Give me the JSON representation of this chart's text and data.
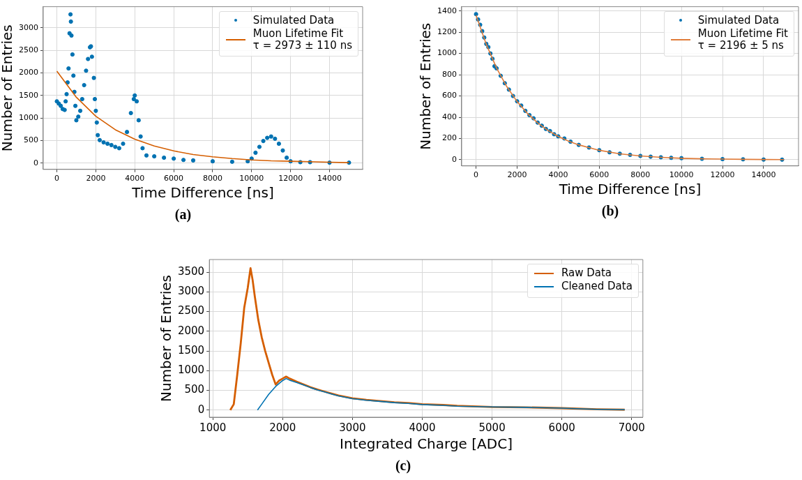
{
  "chart_data": [
    {
      "type": "scatter",
      "xlabel": "Time Difference [ns]",
      "ylabel": "Number of Entries",
      "xlim": [
        -700,
        15700
      ],
      "ylim": [
        -140,
        3470
      ],
      "xticks": [
        0,
        2000,
        4000,
        6000,
        8000,
        10000,
        12000,
        14000
      ],
      "yticks": [
        0,
        500,
        1000,
        1500,
        2000,
        2500,
        3000
      ],
      "grid": true,
      "legend": "top right",
      "annotations": [
        "(a)"
      ],
      "series": [
        {
          "name": "Simulated Data",
          "color": "#0072b2",
          "marker": "circle",
          "x": [
            0,
            100,
            200,
            300,
            400,
            450,
            500,
            550,
            600,
            650,
            700,
            720,
            750,
            800,
            850,
            900,
            950,
            1000,
            1100,
            1200,
            1300,
            1400,
            1500,
            1600,
            1700,
            1750,
            1800,
            1900,
            1950,
            2000,
            2050,
            2100,
            2200,
            2400,
            2600,
            2800,
            3000,
            3200,
            3400,
            3600,
            3800,
            3950,
            4000,
            4100,
            4200,
            4300,
            4400,
            4600,
            5000,
            5500,
            6000,
            6500,
            7000,
            8000,
            9000,
            9800,
            10000,
            10200,
            10400,
            10600,
            10800,
            11000,
            11200,
            11400,
            11600,
            11800,
            12000,
            12500,
            13000,
            14000,
            15000
          ],
          "values": [
            1370,
            1320,
            1270,
            1200,
            1180,
            1370,
            1530,
            1790,
            2100,
            2880,
            3300,
            3140,
            2830,
            2410,
            1940,
            1580,
            1270,
            950,
            1030,
            1160,
            1420,
            1730,
            2050,
            2310,
            2570,
            2590,
            2360,
            1890,
            1420,
            1160,
            900,
            620,
            510,
            460,
            430,
            400,
            360,
            330,
            430,
            690,
            1110,
            1420,
            1500,
            1370,
            950,
            590,
            330,
            170,
            150,
            120,
            100,
            70,
            60,
            40,
            30,
            40,
            100,
            230,
            360,
            490,
            560,
            590,
            540,
            430,
            280,
            120,
            40,
            20,
            20,
            10,
            10
          ]
        },
        {
          "name": "Muon Lifetime Fit\nτ = 2973 ± 110 ns",
          "type": "line",
          "marker": "none",
          "color": "#d55e00",
          "x": [
            0,
            1000,
            2000,
            3000,
            4000,
            5000,
            6000,
            7000,
            8000,
            9000,
            10000,
            11000,
            12000,
            13000,
            14000,
            15000
          ],
          "values": [
            2040,
            1460,
            1040,
            740,
            530,
            380,
            270,
            190,
            140,
            100,
            70,
            50,
            40,
            30,
            20,
            10
          ]
        }
      ]
    },
    {
      "type": "scatter",
      "xlabel": "Time Difference [ns]",
      "ylabel": "Number of Entries",
      "xlim": [
        -700,
        15700
      ],
      "ylim": [
        -58,
        1440
      ],
      "xticks": [
        0,
        2000,
        4000,
        6000,
        8000,
        10000,
        12000,
        14000
      ],
      "yticks": [
        0,
        200,
        400,
        600,
        800,
        1000,
        1200,
        1400
      ],
      "grid": true,
      "legend": "top right",
      "annotations": [
        "(b)"
      ],
      "series": [
        {
          "name": "Simulated Data",
          "color": "#0072b2",
          "marker": "circle",
          "x": [
            0,
            100,
            200,
            300,
            400,
            500,
            600,
            700,
            800,
            900,
            1000,
            1200,
            1400,
            1600,
            1800,
            2000,
            2200,
            2400,
            2600,
            2800,
            3000,
            3200,
            3400,
            3600,
            3800,
            4000,
            4300,
            4600,
            5000,
            5500,
            6000,
            6500,
            7000,
            7500,
            8000,
            8500,
            9000,
            9500,
            10000,
            11000,
            12000,
            13000,
            14000,
            14900
          ],
          "values": [
            1370,
            1320,
            1270,
            1210,
            1150,
            1090,
            1060,
            1000,
            950,
            880,
            860,
            790,
            720,
            660,
            600,
            550,
            510,
            460,
            420,
            390,
            350,
            320,
            290,
            270,
            240,
            220,
            200,
            170,
            140,
            115,
            90,
            70,
            57,
            46,
            36,
            29,
            23,
            18,
            15,
            9,
            6,
            4,
            2,
            1
          ]
        },
        {
          "name": "Muon Lifetime Fit\nτ = 2196 ± 5 ns",
          "type": "line",
          "marker": "none",
          "color": "#e07b39",
          "x": [
            0,
            500,
            1000,
            1500,
            2000,
            2500,
            3000,
            3500,
            4000,
            4500,
            5000,
            6000,
            7000,
            8000,
            9000,
            10000,
            11000,
            12000,
            13000,
            14000,
            15000
          ],
          "values": [
            1360,
            1085,
            862,
            687,
            547,
            436,
            347,
            276,
            220,
            175,
            140,
            89,
            56,
            36,
            23,
            14,
            9,
            6,
            4,
            2,
            1
          ]
        }
      ]
    },
    {
      "type": "line",
      "xlabel": "Integrated Charge [ADC]",
      "ylabel": "Number of Entries",
      "xlim": [
        950,
        7160
      ],
      "ylim": [
        -180,
        3820
      ],
      "xticks": [
        1000,
        2000,
        3000,
        4000,
        5000,
        6000,
        7000
      ],
      "yticks": [
        0,
        500,
        1000,
        1500,
        2000,
        2500,
        3000,
        3500
      ],
      "grid": true,
      "legend": "top right",
      "annotations": [
        "(c)"
      ],
      "series": [
        {
          "name": "Raw Data",
          "color": "#d55e00",
          "x": [
            1250,
            1300,
            1350,
            1400,
            1450,
            1500,
            1540,
            1570,
            1600,
            1650,
            1700,
            1750,
            1800,
            1850,
            1900,
            1950,
            2000,
            2050,
            2100,
            2200,
            2300,
            2400,
            2500,
            2600,
            2700,
            2800,
            3000,
            3200,
            3400,
            3600,
            3800,
            4000,
            4300,
            4500,
            5000,
            5500,
            6000,
            6500,
            6900
          ],
          "values": [
            0,
            150,
            900,
            1700,
            2600,
            3100,
            3600,
            3300,
            2900,
            2300,
            1850,
            1500,
            1200,
            900,
            650,
            750,
            800,
            850,
            800,
            720,
            650,
            580,
            520,
            470,
            420,
            370,
            300,
            260,
            230,
            200,
            180,
            150,
            130,
            110,
            80,
            70,
            50,
            20,
            10
          ]
        },
        {
          "name": "Cleaned Data",
          "color": "#0072b2",
          "x": [
            1640,
            1700,
            1800,
            1900,
            2000,
            2050,
            2100,
            2200,
            2300,
            2400,
            2500,
            2600,
            2700,
            2800,
            3000,
            3200,
            3400,
            3600,
            3800,
            4000,
            4300,
            4500,
            5000,
            5500,
            6000,
            6500,
            6900
          ],
          "values": [
            0,
            150,
            400,
            600,
            750,
            800,
            760,
            700,
            640,
            570,
            510,
            460,
            410,
            360,
            290,
            250,
            220,
            190,
            170,
            140,
            120,
            100,
            80,
            70,
            50,
            20,
            10
          ]
        }
      ]
    }
  ]
}
